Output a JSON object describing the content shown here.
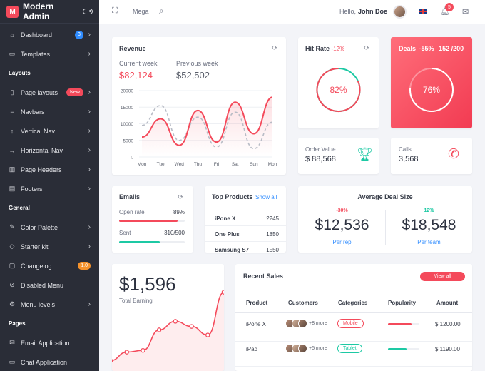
{
  "brand": {
    "name": "Modern Admin",
    "logo_letter": "M"
  },
  "sidebar": {
    "items_top": [
      {
        "icon": "⌂",
        "label": "Dashboard",
        "badge": "3"
      },
      {
        "icon": "▭",
        "label": "Templates"
      }
    ],
    "section_layouts": "Layouts",
    "items_layouts": [
      {
        "icon": "▯",
        "label": "Page layouts",
        "badge": "New"
      },
      {
        "icon": "≡",
        "label": "Navbars"
      },
      {
        "icon": "↕",
        "label": "Vertical Nav"
      },
      {
        "icon": "↔",
        "label": "Horizontal Nav"
      },
      {
        "icon": "▥",
        "label": "Page Headers"
      },
      {
        "icon": "▤",
        "label": "Footers"
      }
    ],
    "section_general": "General",
    "items_general": [
      {
        "icon": "✎",
        "label": "Color Palette"
      },
      {
        "icon": "◇",
        "label": "Starter kit"
      },
      {
        "icon": "▢",
        "label": "Changelog",
        "badge": "1.0"
      },
      {
        "icon": "⊘",
        "label": "Disabled Menu"
      },
      {
        "icon": "⚙",
        "label": "Menu levels"
      }
    ],
    "section_pages": "Pages",
    "items_pages": [
      {
        "icon": "✉",
        "label": "Email Application"
      },
      {
        "icon": "▭",
        "label": "Chat Application"
      }
    ]
  },
  "topbar": {
    "mega": "Mega",
    "hello": "Hello,",
    "user": "John Doe",
    "notifications": "5"
  },
  "revenue": {
    "title": "Revenue",
    "current_label": "Current week",
    "current_value": "$82,124",
    "previous_label": "Previous week",
    "previous_value": "$52,502"
  },
  "hit_rate": {
    "title": "Hit Rate",
    "change": "-12%",
    "value": "82%",
    "percent": 82
  },
  "deals": {
    "title": "Deals",
    "change": "-55%",
    "fraction": "152 /200",
    "value": "76%",
    "percent": 76
  },
  "order_value": {
    "label": "Order Value",
    "value": "$ 88,568"
  },
  "calls": {
    "label": "Calls",
    "value": "3,568"
  },
  "emails": {
    "title": "Emails",
    "open_label": "Open rate",
    "open_value": "89%",
    "open_percent": 89,
    "sent_label": "Sent",
    "sent_value": "310/500",
    "sent_percent": 62
  },
  "top_products": {
    "title": "Top Products",
    "link": "Show all",
    "rows": [
      {
        "name": "iPone X",
        "value": "2245"
      },
      {
        "name": "One Plus",
        "value": "1850"
      },
      {
        "name": "Samsung S7",
        "value": "1550"
      }
    ]
  },
  "avg_deal": {
    "title": "Average Deal Size",
    "left": {
      "change": "-30%",
      "value": "$12,536",
      "label": "Per rep"
    },
    "right": {
      "change": "12%",
      "value": "$18,548",
      "label": "Per team"
    }
  },
  "earning": {
    "value": "$1,596",
    "label": "Total Earning"
  },
  "recent_sales": {
    "title": "Recent Sales",
    "button": "View all",
    "headers": [
      "Product",
      "Customers",
      "Categories",
      "Popularity",
      "Amount"
    ],
    "rows": [
      {
        "product": "iPone X",
        "more": "+8 more",
        "category": "Mobile",
        "popularity": 75,
        "amount": "$ 1200.00"
      },
      {
        "product": "iPad",
        "more": "+5 more",
        "category": "Tablet",
        "popularity": 60,
        "amount": "$ 1190.00"
      }
    ]
  },
  "chart_data": [
    {
      "type": "line",
      "x": [
        "Mon",
        "Tue",
        "Wed",
        "Thu",
        "Fri",
        "Sat",
        "Sun",
        "Mon"
      ],
      "ylim": [
        0,
        20000
      ],
      "yticks": [
        "20000",
        "15000",
        "10000",
        "5000",
        "0"
      ],
      "series": [
        {
          "values": [
            6000,
            11500,
            3500,
            14000,
            4500,
            16500,
            7000,
            18000
          ],
          "color": "#f44a5b"
        },
        {
          "values": [
            9500,
            15500,
            5000,
            12000,
            3000,
            13500,
            2500,
            10500
          ],
          "color": "#b8bcc6",
          "dashed": true
        }
      ]
    },
    {
      "type": "line",
      "x": [
        0,
        1,
        2,
        3,
        4,
        5,
        6,
        7
      ],
      "values": [
        6,
        11,
        12,
        24,
        29,
        26,
        21,
        46
      ],
      "ylim": [
        0,
        50
      ],
      "color": "#f44a5b"
    }
  ]
}
